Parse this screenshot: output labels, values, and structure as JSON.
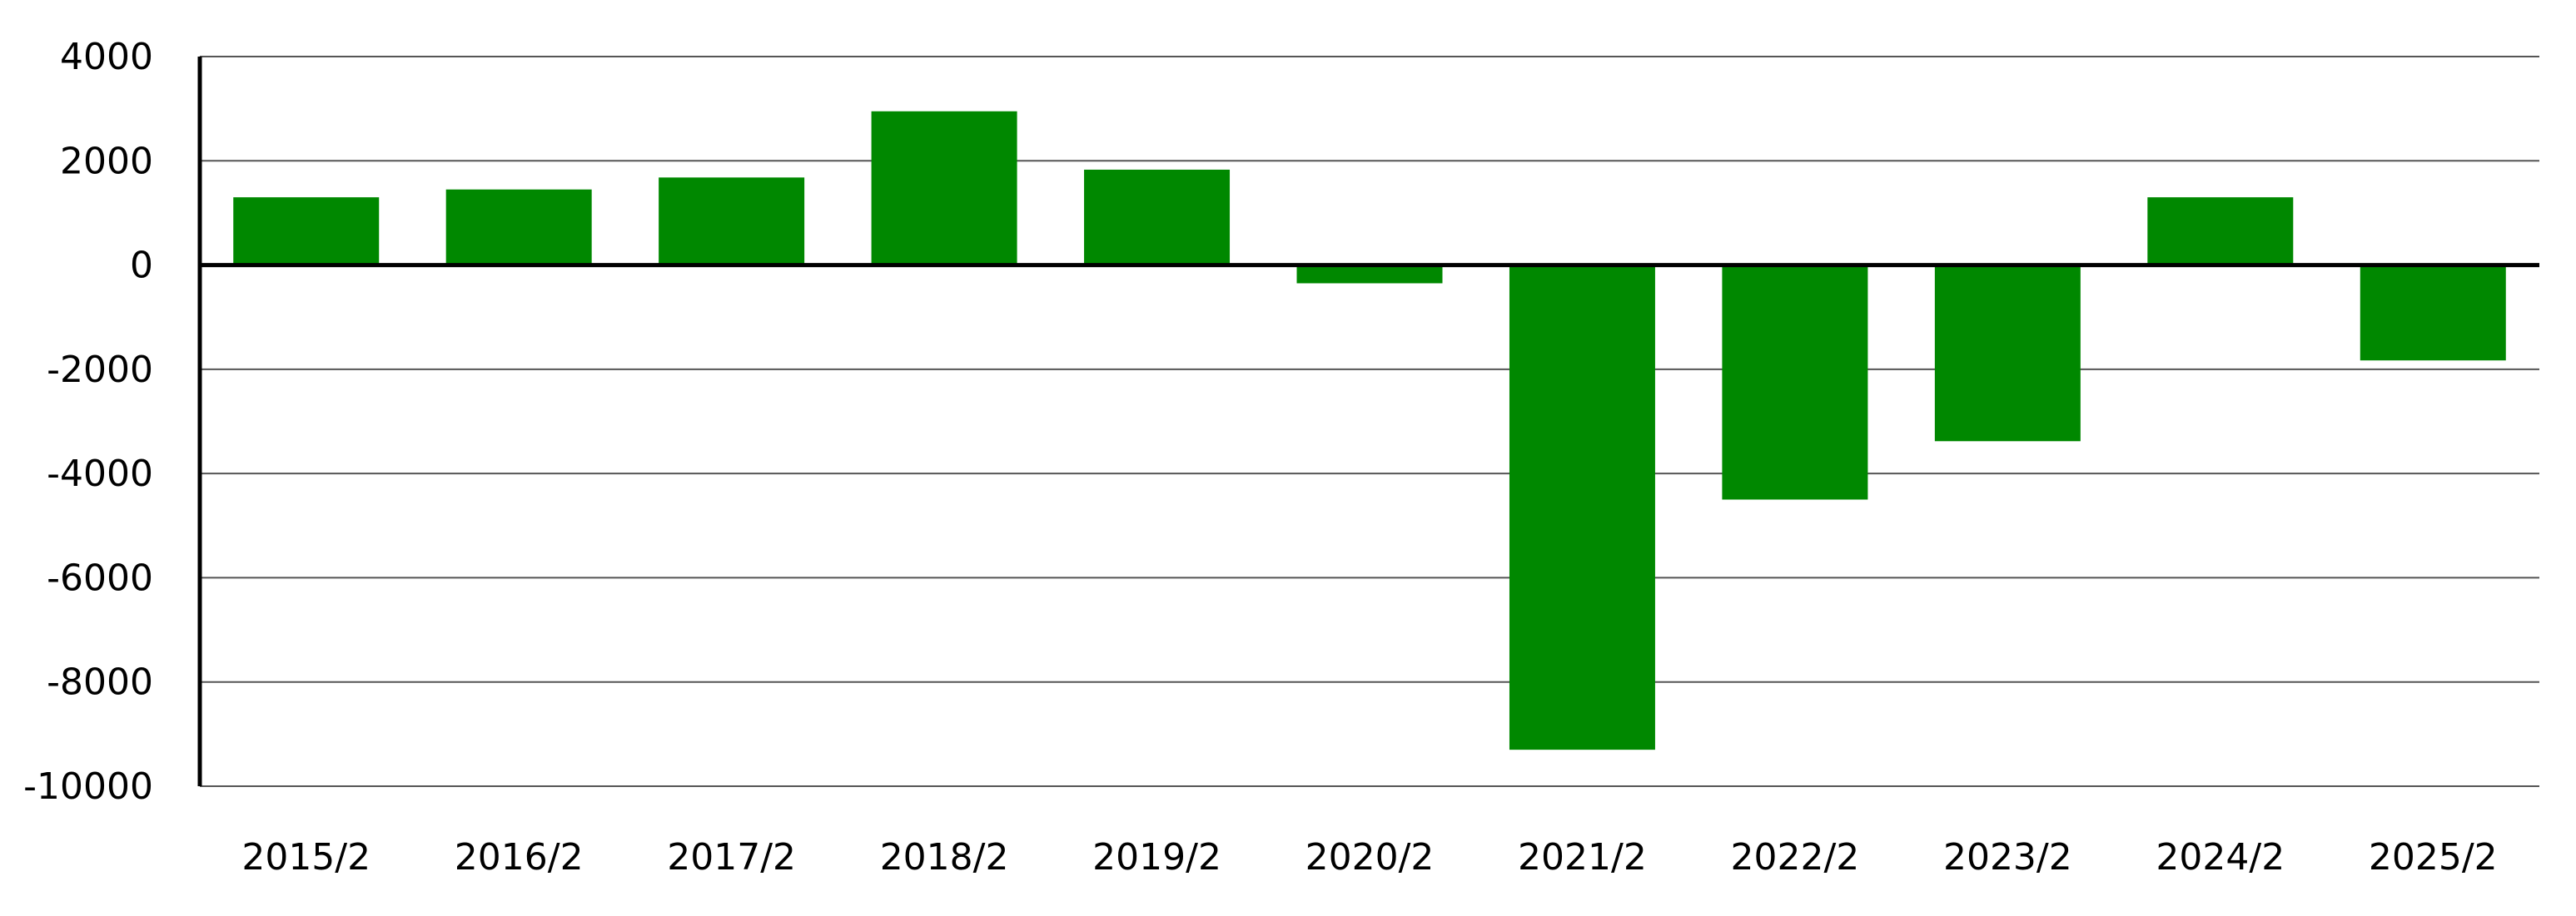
{
  "chart_data": {
    "type": "bar",
    "title": "",
    "xlabel": "",
    "ylabel": "",
    "categories": [
      "2015/2",
      "2016/2",
      "2017/2",
      "2018/2",
      "2019/2",
      "2020/2",
      "2021/2",
      "2022/2",
      "2023/2",
      "2024/2",
      "2025/2"
    ],
    "values": [
      1300,
      1450,
      1680,
      2950,
      1830,
      -350,
      -9300,
      -4500,
      -3380,
      1300,
      -1830
    ],
    "ylim": [
      -10000,
      4000
    ],
    "yticks": [
      "4000",
      "2000",
      "0",
      "-2000",
      "-4000",
      "-6000",
      "-8000",
      "-10000"
    ],
    "grid": true,
    "bar_color": "#008800",
    "grid_color": "#555555",
    "axis_color": "#000000"
  }
}
